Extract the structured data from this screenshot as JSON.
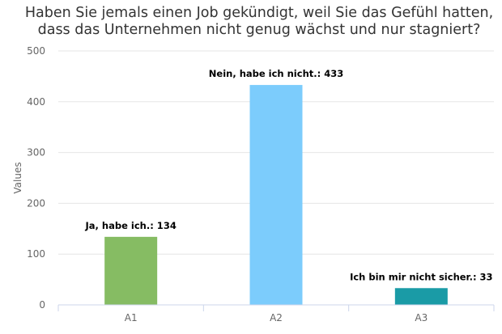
{
  "chart_data": {
    "type": "bar",
    "title": "Haben Sie jemals einen Job gekündigt, weil Sie das Gefühl hatten, dass das Unternehmen nicht genug wächst und nur stagniert?",
    "xlabel": "",
    "ylabel": "Values",
    "ylim": [
      0,
      500
    ],
    "yticks": [
      0,
      100,
      200,
      300,
      400,
      500
    ],
    "grid": true,
    "categories": [
      "A1",
      "A2",
      "A3"
    ],
    "values": [
      134,
      433,
      33
    ],
    "data_labels": [
      "Ja, habe ich.: 134",
      "Nein, habe ich nicht.: 433",
      "Ich bin mir nicht sicher.: 33"
    ],
    "colors": [
      "#86bc63",
      "#7cccfc",
      "#1a9ba6"
    ]
  }
}
